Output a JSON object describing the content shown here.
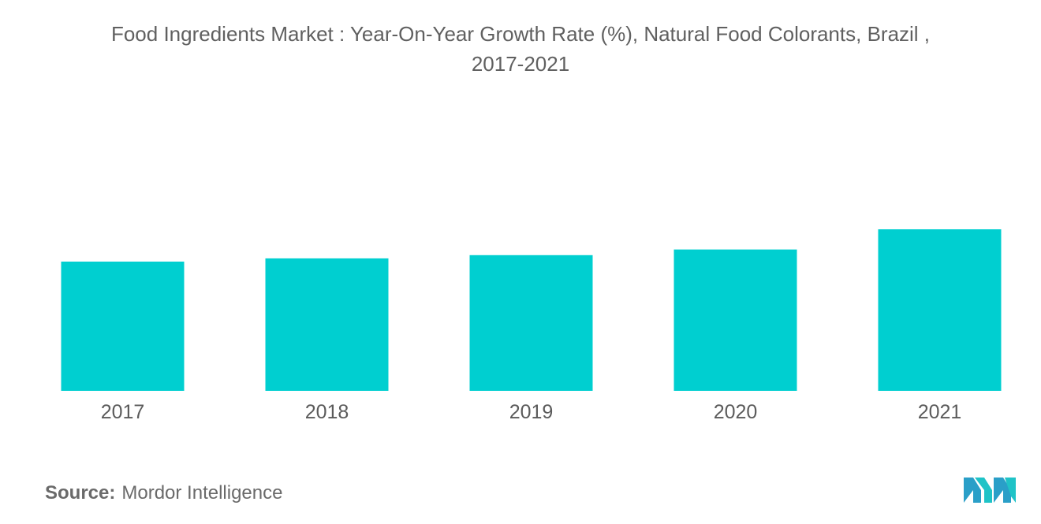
{
  "title_line1": "Food Ingredients Market : Year-On-Year Growth Rate (%), Natural Food Colorants, Brazil ,",
  "title_line2": "2017-2021",
  "source_label": "Source:",
  "source_text": "Mordor Intelligence",
  "logo_icon": "mordor-intelligence-logo",
  "chart_data": {
    "type": "bar",
    "categories": [
      "2017",
      "2018",
      "2019",
      "2020",
      "2021"
    ],
    "values": [
      8.0,
      8.2,
      8.4,
      8.75,
      10.0
    ],
    "ylim": [
      0,
      10
    ],
    "grid": false,
    "legend": "none",
    "color": "#00cfd0"
  }
}
